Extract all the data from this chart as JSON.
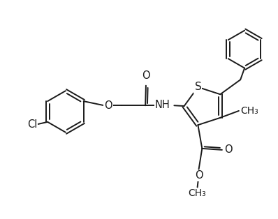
{
  "background_color": "#ffffff",
  "line_color": "#1a1a1a",
  "line_width": 1.4,
  "font_size": 10.5,
  "fig_width": 3.98,
  "fig_height": 3.14,
  "dpi": 100,
  "xlim": [
    0,
    10
  ],
  "ylim": [
    0,
    7.85
  ]
}
